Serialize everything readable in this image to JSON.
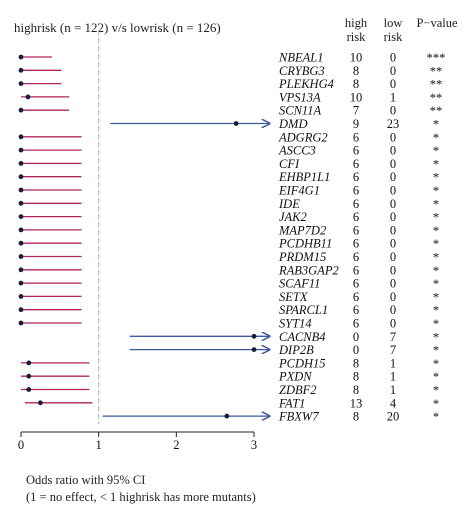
{
  "chart_data": {
    "type": "forest",
    "title": "highrisk (n = 122) v/s lowrisk (n = 126)",
    "columns": {
      "high_risk": [
        "high",
        "risk"
      ],
      "low_risk": [
        "low",
        "risk"
      ],
      "p_value": "P−value"
    },
    "xlabel": "Odds ratio with 95% CI",
    "xlabel_note": "(1 = no effect, < 1 highrisk has more mutants)",
    "xlim": [
      0,
      3
    ],
    "xticks": [
      "0",
      "1",
      "2",
      "3"
    ],
    "reference_line": 1,
    "colors": {
      "lt1": "#b0245a",
      "gt1": "#3a5a9c",
      "point": "#1f1a3d",
      "axis": "#222222",
      "ref": "#aaaaaa"
    },
    "rows": [
      {
        "gene": "NBEAL1",
        "high": "10",
        "low": "0",
        "p": "***",
        "or": 0.0,
        "lo": 0.0,
        "hi": 0.4
      },
      {
        "gene": "CRYBG3",
        "high": "8",
        "low": "0",
        "p": "**",
        "or": 0.0,
        "lo": 0.0,
        "hi": 0.52
      },
      {
        "gene": "PLEKHG4",
        "high": "8",
        "low": "0",
        "p": "**",
        "or": 0.0,
        "lo": 0.0,
        "hi": 0.52
      },
      {
        "gene": "VPS13A",
        "high": "10",
        "low": "1",
        "p": "**",
        "or": 0.09,
        "lo": 0.0,
        "hi": 0.62
      },
      {
        "gene": "SCN11A",
        "high": "7",
        "low": "0",
        "p": "**",
        "or": 0.0,
        "lo": 0.0,
        "hi": 0.62
      },
      {
        "gene": "DMD",
        "high": "9",
        "low": "23",
        "p": "*",
        "or": 2.77,
        "lo": 1.15,
        "hi": 3.2,
        "arrow": true
      },
      {
        "gene": "ADGRG2",
        "high": "6",
        "low": "0",
        "p": "*",
        "or": 0.0,
        "lo": 0.0,
        "hi": 0.78
      },
      {
        "gene": "ASCC3",
        "high": "6",
        "low": "0",
        "p": "*",
        "or": 0.0,
        "lo": 0.0,
        "hi": 0.78
      },
      {
        "gene": "CFI",
        "high": "6",
        "low": "0",
        "p": "*",
        "or": 0.0,
        "lo": 0.0,
        "hi": 0.78
      },
      {
        "gene": "EHBP1L1",
        "high": "6",
        "low": "0",
        "p": "*",
        "or": 0.0,
        "lo": 0.0,
        "hi": 0.78
      },
      {
        "gene": "EIF4G1",
        "high": "6",
        "low": "0",
        "p": "*",
        "or": 0.0,
        "lo": 0.0,
        "hi": 0.78
      },
      {
        "gene": "IDE",
        "high": "6",
        "low": "0",
        "p": "*",
        "or": 0.0,
        "lo": 0.0,
        "hi": 0.78
      },
      {
        "gene": "JAK2",
        "high": "6",
        "low": "0",
        "p": "*",
        "or": 0.0,
        "lo": 0.0,
        "hi": 0.78
      },
      {
        "gene": "MAP7D2",
        "high": "6",
        "low": "0",
        "p": "*",
        "or": 0.0,
        "lo": 0.0,
        "hi": 0.78
      },
      {
        "gene": "PCDHB11",
        "high": "6",
        "low": "0",
        "p": "*",
        "or": 0.0,
        "lo": 0.0,
        "hi": 0.78
      },
      {
        "gene": "PRDM15",
        "high": "6",
        "low": "0",
        "p": "*",
        "or": 0.0,
        "lo": 0.0,
        "hi": 0.78
      },
      {
        "gene": "RAB3GAP2",
        "high": "6",
        "low": "0",
        "p": "*",
        "or": 0.0,
        "lo": 0.0,
        "hi": 0.78
      },
      {
        "gene": "SCAF11",
        "high": "6",
        "low": "0",
        "p": "*",
        "or": 0.0,
        "lo": 0.0,
        "hi": 0.78
      },
      {
        "gene": "SETX",
        "high": "6",
        "low": "0",
        "p": "*",
        "or": 0.0,
        "lo": 0.0,
        "hi": 0.78
      },
      {
        "gene": "SPARCL1",
        "high": "6",
        "low": "0",
        "p": "*",
        "or": 0.0,
        "lo": 0.0,
        "hi": 0.78
      },
      {
        "gene": "SYT14",
        "high": "6",
        "low": "0",
        "p": "*",
        "or": 0.0,
        "lo": 0.0,
        "hi": 0.78
      },
      {
        "gene": "CACNB4",
        "high": "0",
        "low": "7",
        "p": "*",
        "or": 3.0,
        "lo": 1.4,
        "hi": 3.2,
        "arrow": true
      },
      {
        "gene": "DIP2B",
        "high": "0",
        "low": "7",
        "p": "*",
        "or": 3.0,
        "lo": 1.4,
        "hi": 3.2,
        "arrow": true
      },
      {
        "gene": "PCDH15",
        "high": "8",
        "low": "1",
        "p": "*",
        "or": 0.1,
        "lo": 0.0,
        "hi": 0.88
      },
      {
        "gene": "PXDN",
        "high": "8",
        "low": "1",
        "p": "*",
        "or": 0.1,
        "lo": 0.0,
        "hi": 0.88
      },
      {
        "gene": "ZDBF2",
        "high": "8",
        "low": "1",
        "p": "*",
        "or": 0.1,
        "lo": 0.0,
        "hi": 0.88
      },
      {
        "gene": "FAT1",
        "high": "13",
        "low": "4",
        "p": "*",
        "or": 0.25,
        "lo": 0.05,
        "hi": 0.92
      },
      {
        "gene": "FBXW7",
        "high": "8",
        "low": "20",
        "p": "*",
        "or": 2.65,
        "lo": 1.05,
        "hi": 3.2,
        "arrow": true
      }
    ]
  }
}
